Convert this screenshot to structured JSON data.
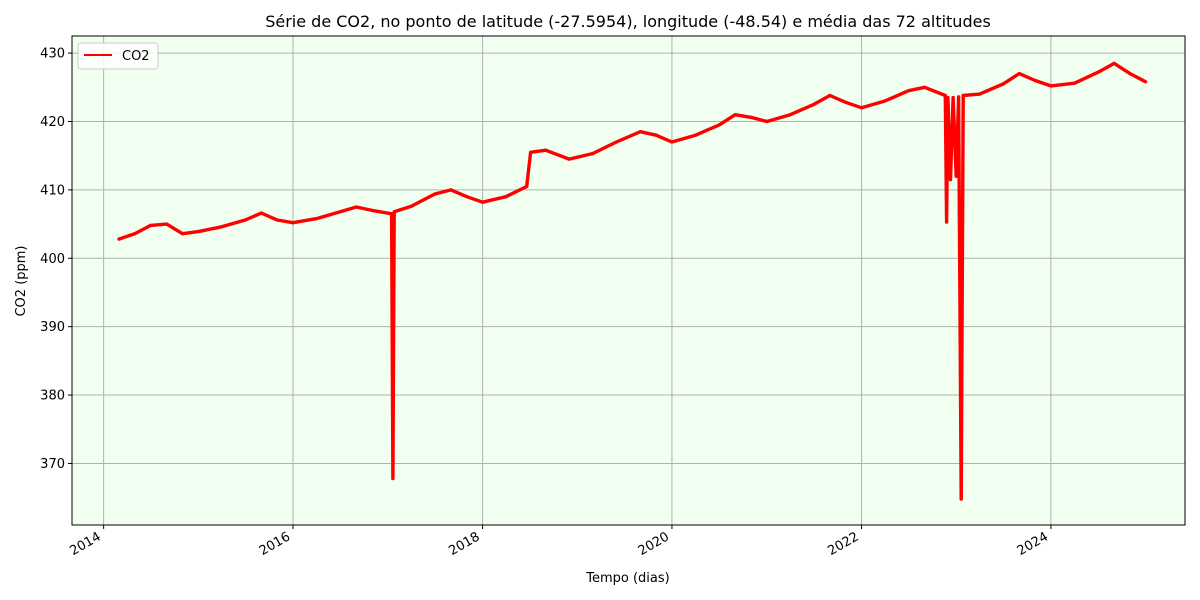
{
  "chart_data": {
    "type": "line",
    "title": "Série de CO2, no ponto de  latitude (-27.5954), longitude (-48.54) e média das 72 altitudes",
    "xlabel": "Tempo (dias)",
    "ylabel": "CO2 (ppm)",
    "xlim": [
      "2013-09-01",
      "2025-06-01"
    ],
    "ylim": [
      361,
      432.5
    ],
    "x_ticks": [
      {
        "date": "2014-01-01",
        "label": "2014"
      },
      {
        "date": "2016-01-01",
        "label": "2016"
      },
      {
        "date": "2018-01-01",
        "label": "2018"
      },
      {
        "date": "2020-01-01",
        "label": "2020"
      },
      {
        "date": "2022-01-01",
        "label": "2022"
      },
      {
        "date": "2024-01-01",
        "label": "2024"
      }
    ],
    "y_ticks": [
      370,
      380,
      390,
      400,
      410,
      420,
      430
    ],
    "grid": true,
    "legend_position": "upper-left",
    "plot_background": "#f0ffef",
    "series": [
      {
        "name": "CO2",
        "color": "#ff0000",
        "points": [
          [
            "2014-03-01",
            402.8
          ],
          [
            "2014-05-01",
            403.6
          ],
          [
            "2014-07-01",
            404.8
          ],
          [
            "2014-09-01",
            405.0
          ],
          [
            "2014-11-01",
            403.6
          ],
          [
            "2015-01-01",
            403.9
          ],
          [
            "2015-04-01",
            404.6
          ],
          [
            "2015-07-01",
            405.6
          ],
          [
            "2015-09-01",
            406.6
          ],
          [
            "2015-11-01",
            405.6
          ],
          [
            "2016-01-01",
            405.2
          ],
          [
            "2016-04-01",
            405.8
          ],
          [
            "2016-07-01",
            406.8
          ],
          [
            "2016-09-01",
            407.5
          ],
          [
            "2016-11-01",
            407.0
          ],
          [
            "2017-01-15",
            406.5
          ],
          [
            "2017-01-20",
            367.8
          ],
          [
            "2017-01-25",
            406.8
          ],
          [
            "2017-04-01",
            407.6
          ],
          [
            "2017-07-01",
            409.4
          ],
          [
            "2017-09-01",
            410.0
          ],
          [
            "2017-11-01",
            409.0
          ],
          [
            "2018-01-01",
            408.2
          ],
          [
            "2018-04-01",
            409.0
          ],
          [
            "2018-06-20",
            410.5
          ],
          [
            "2018-07-05",
            415.5
          ],
          [
            "2018-09-01",
            415.8
          ],
          [
            "2018-12-01",
            414.5
          ],
          [
            "2019-03-01",
            415.3
          ],
          [
            "2019-06-01",
            417.0
          ],
          [
            "2019-09-01",
            418.5
          ],
          [
            "2019-11-01",
            418.0
          ],
          [
            "2020-01-01",
            417.0
          ],
          [
            "2020-04-01",
            418.0
          ],
          [
            "2020-07-01",
            419.5
          ],
          [
            "2020-09-01",
            421.0
          ],
          [
            "2020-11-01",
            420.6
          ],
          [
            "2021-01-01",
            420.0
          ],
          [
            "2021-04-01",
            421.0
          ],
          [
            "2021-07-01",
            422.5
          ],
          [
            "2021-09-01",
            423.8
          ],
          [
            "2021-11-01",
            422.8
          ],
          [
            "2022-01-01",
            422.0
          ],
          [
            "2022-04-01",
            423.0
          ],
          [
            "2022-07-01",
            424.5
          ],
          [
            "2022-09-01",
            425.0
          ],
          [
            "2022-11-20",
            423.8
          ],
          [
            "2022-11-25",
            405.3
          ],
          [
            "2022-11-30",
            423.5
          ],
          [
            "2022-12-10",
            411.5
          ],
          [
            "2022-12-20",
            423.5
          ],
          [
            "2023-01-01",
            412.0
          ],
          [
            "2023-01-10",
            423.6
          ],
          [
            "2023-01-20",
            364.8
          ],
          [
            "2023-01-28",
            423.8
          ],
          [
            "2023-04-01",
            424.0
          ],
          [
            "2023-07-01",
            425.5
          ],
          [
            "2023-09-01",
            427.0
          ],
          [
            "2023-11-01",
            426.0
          ],
          [
            "2024-01-01",
            425.2
          ],
          [
            "2024-04-01",
            425.6
          ],
          [
            "2024-07-01",
            427.2
          ],
          [
            "2024-09-01",
            428.5
          ],
          [
            "2024-11-01",
            427.0
          ],
          [
            "2024-12-31",
            425.8
          ]
        ]
      }
    ]
  }
}
